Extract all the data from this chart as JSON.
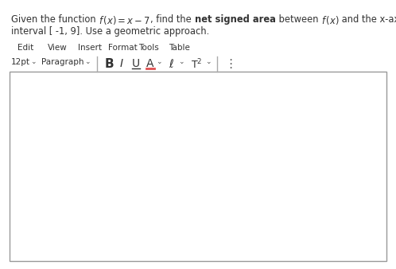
{
  "background_color": "#ffffff",
  "text_color": "#333333",
  "menu_items": [
    "Edit",
    "View",
    "Insert",
    "Format",
    "Tools",
    "Table"
  ],
  "fig_width": 4.98,
  "fig_height": 3.38,
  "dpi": 100
}
